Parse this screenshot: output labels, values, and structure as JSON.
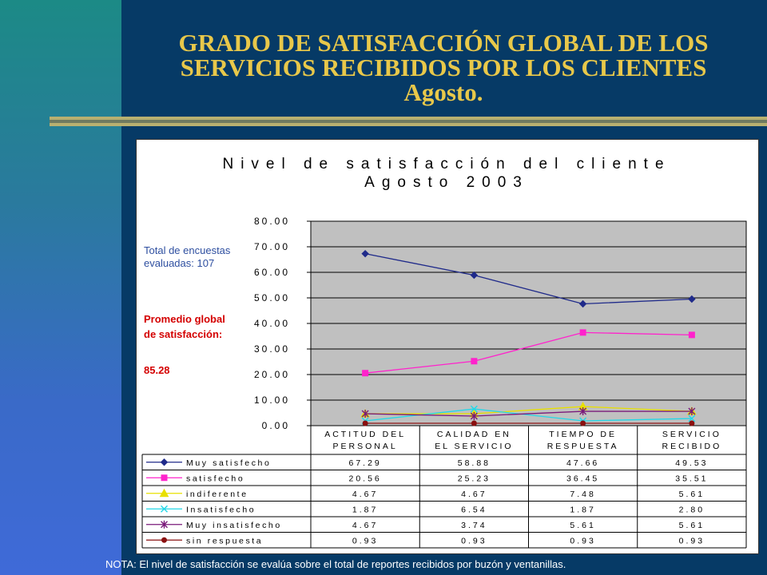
{
  "slide": {
    "title_lines": [
      "GRADO DE SATISFACCIÓN GLOBAL DE LOS",
      "SERVICIOS RECIBIDOS POR LOS CLIENTES",
      "Agosto."
    ],
    "total_label": "Total de encuestas evaluadas: 107",
    "promedio_label": "Promedio global de satisfacción:",
    "promedio_value": "85.28",
    "footnote": "NOTA: El nivel de satisfacción se evalúa sobre el total de reportes recibidos por buzón y ventanillas."
  },
  "chart_data": {
    "type": "line",
    "title": "Nivel de satisfacción del cliente",
    "subtitle": "Agosto 2003",
    "categories": [
      "ACTITUD DEL PERSONAL",
      "CALIDAD EN EL SERVICIO",
      "TIEMPO DE RESPUESTA",
      "SERVICIO RECIBIDO"
    ],
    "category_lines": [
      [
        "ACTITUD DEL",
        "PERSONAL"
      ],
      [
        "CALIDAD EN",
        "EL SERVICIO"
      ],
      [
        "TIEMPO DE",
        "RESPUESTA"
      ],
      [
        "SERVICIO",
        "RECIBIDO"
      ]
    ],
    "ylim": [
      0,
      80
    ],
    "yticks": [
      "0.00",
      "10.00",
      "20.00",
      "30.00",
      "40.00",
      "50.00",
      "60.00",
      "70.00",
      "80.00"
    ],
    "grid": true,
    "legend": "data-table-below",
    "series": [
      {
        "name": "Muy satisfecho",
        "values": [
          67.29,
          58.88,
          47.66,
          49.53
        ],
        "labels": [
          "67.29",
          "58.88",
          "47.66",
          "49.53"
        ],
        "color": "#1f2a8a",
        "marker": "diamond"
      },
      {
        "name": "satisfecho",
        "values": [
          20.56,
          25.23,
          36.45,
          35.51
        ],
        "labels": [
          "20.56",
          "25.23",
          "36.45",
          "35.51"
        ],
        "color": "#ff22cc",
        "marker": "square"
      },
      {
        "name": "indiferente",
        "values": [
          4.67,
          4.67,
          7.48,
          5.61
        ],
        "labels": [
          "4.67",
          "4.67",
          "7.48",
          "5.61"
        ],
        "color": "#e8e000",
        "marker": "triangle"
      },
      {
        "name": "Insatisfecho",
        "values": [
          1.87,
          6.54,
          1.87,
          2.8
        ],
        "labels": [
          "1.87",
          "6.54",
          "1.87",
          "2.80"
        ],
        "color": "#22d8e8",
        "marker": "x"
      },
      {
        "name": "Muy insatisfecho",
        "values": [
          4.67,
          3.74,
          5.61,
          5.61
        ],
        "labels": [
          "4.67",
          "3.74",
          "5.61",
          "5.61"
        ],
        "color": "#7a1a7a",
        "marker": "star"
      },
      {
        "name": "sin respuesta",
        "values": [
          0.93,
          0.93,
          0.93,
          0.93
        ],
        "labels": [
          "0.93",
          "0.93",
          "0.93",
          "0.93"
        ],
        "color": "#8a1010",
        "marker": "circle"
      }
    ]
  }
}
